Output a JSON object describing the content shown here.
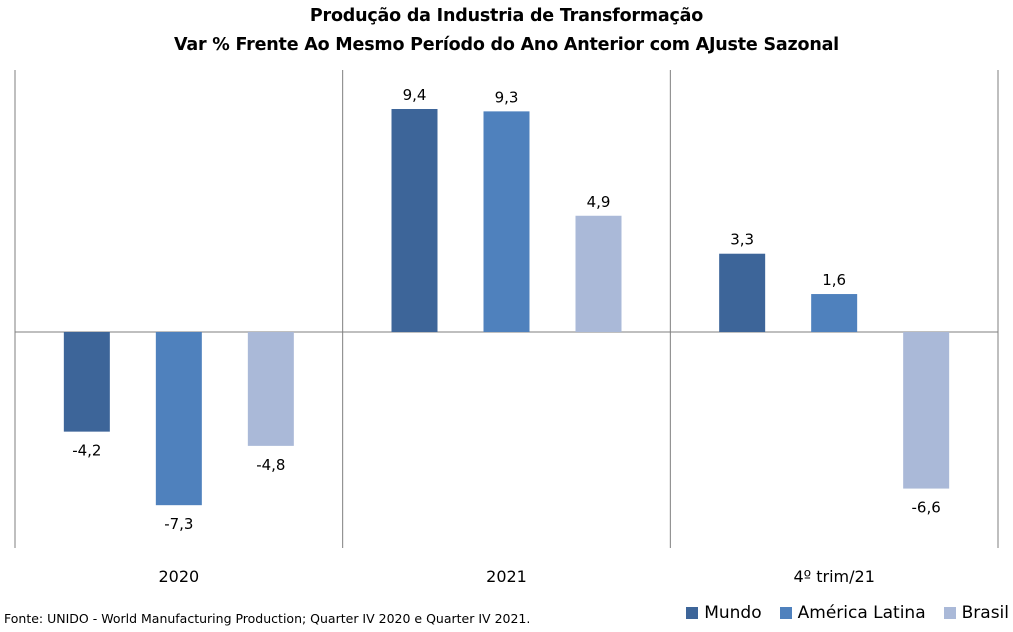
{
  "chart_data": {
    "type": "bar",
    "title": "Produção da Industria de Transformação",
    "subtitle": "Var % Frente Ao Mesmo Período do Ano Anterior com AJuste Sazonal",
    "categories": [
      "2020",
      "2021",
      "4º trim/21"
    ],
    "series": [
      {
        "name": "Mundo",
        "color": "#3d6599",
        "values": [
          -4.2,
          9.4,
          3.3
        ],
        "labels": [
          "-4,2",
          "9,4",
          "3,3"
        ]
      },
      {
        "name": "América Latina",
        "color": "#4f81bd",
        "values": [
          -7.3,
          9.3,
          1.6
        ],
        "labels": [
          "-7,3",
          "9,3",
          "1,6"
        ]
      },
      {
        "name": "Brasil",
        "color": "#aab9d8",
        "values": [
          -4.8,
          4.9,
          -6.6
        ],
        "labels": [
          "-4,8",
          "4,9",
          "-6,6"
        ]
      }
    ],
    "ylim": [
      -9,
      11
    ],
    "grid": false,
    "legend_position": "bottom-right"
  },
  "footer": {
    "source": "Fonte: UNIDO - World Manufacturing Production; Quarter IV 2020 e Quarter IV 2021."
  }
}
